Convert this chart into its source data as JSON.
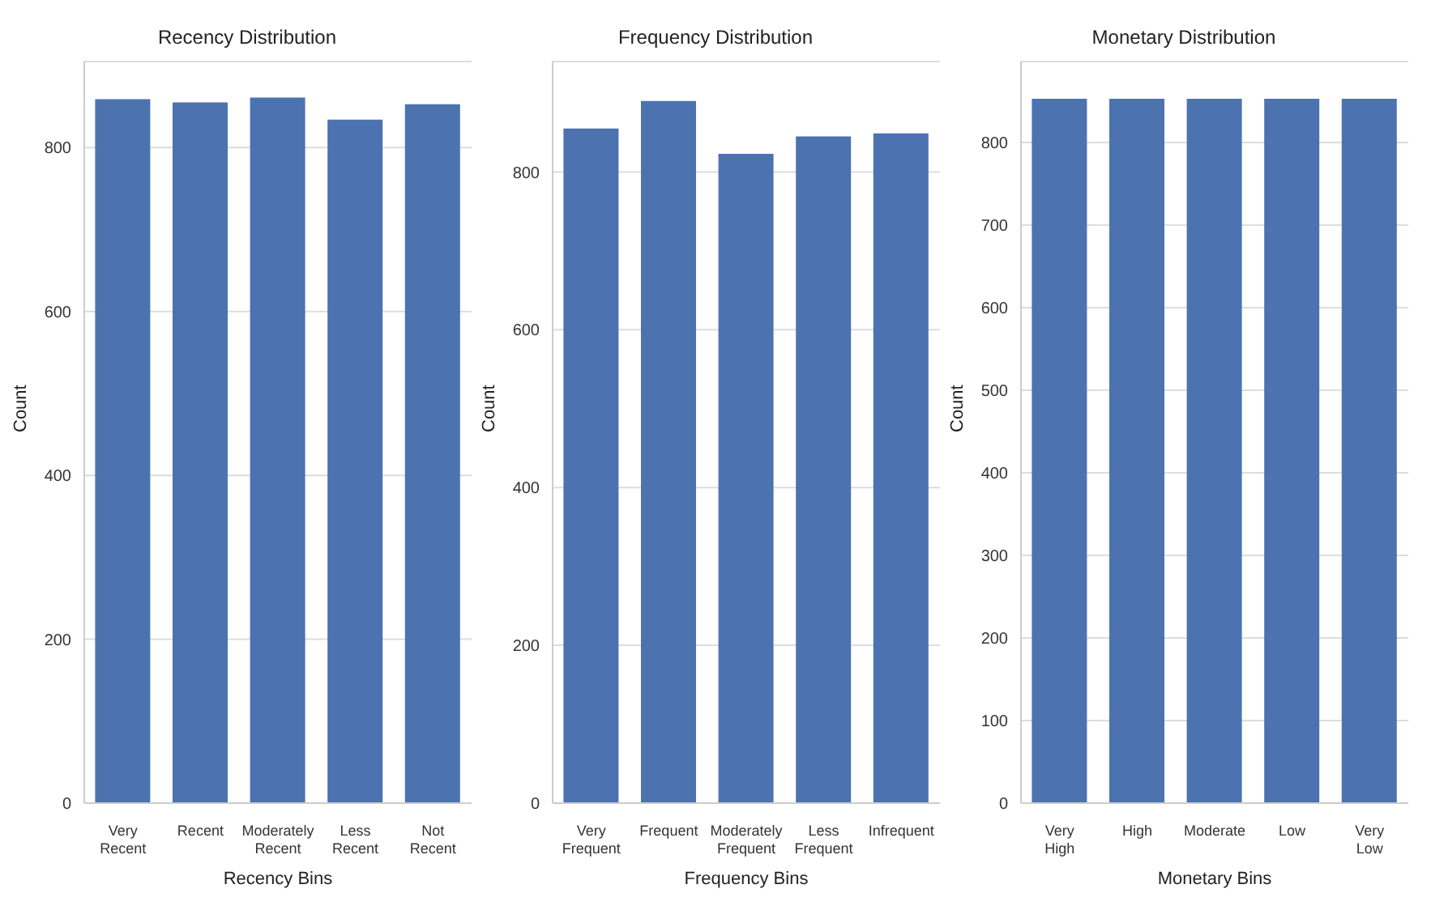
{
  "chart_data": [
    {
      "type": "bar",
      "title": "Recency Distribution",
      "xlabel": "Recency Bins",
      "ylabel": "Count",
      "categories": [
        "Very Recent",
        "Recent",
        "Moderately Recent",
        "Less Recent",
        "Not Recent"
      ],
      "values": [
        859,
        855,
        861,
        834,
        853
      ],
      "color": "#4c72b0",
      "ylim": [
        0,
        905
      ],
      "yticks": [
        0,
        200,
        400,
        600,
        800
      ],
      "grid": "y"
    },
    {
      "type": "bar",
      "title": "Frequency Distribution",
      "xlabel": "Frequency Bins",
      "ylabel": "Count",
      "categories": [
        "Very Frequent",
        "Frequent",
        "Moderately Frequent",
        "Less Frequent",
        "Infrequent"
      ],
      "values": [
        855,
        890,
        823,
        845,
        849
      ],
      "color": "#4c72b0",
      "ylim": [
        0,
        940
      ],
      "yticks": [
        0,
        200,
        400,
        600,
        800
      ],
      "grid": "y"
    },
    {
      "type": "bar",
      "title": "Monetary Distribution",
      "xlabel": "Monetary Bins",
      "ylabel": "Count",
      "categories": [
        "Very High",
        "High",
        "Moderate",
        "Low",
        "Very Low"
      ],
      "values": [
        853,
        853,
        853,
        853,
        853
      ],
      "color": "#4c72b0",
      "ylim": [
        0,
        898
      ],
      "yticks": [
        0,
        100,
        200,
        300,
        400,
        500,
        600,
        700,
        800
      ],
      "grid": "y"
    }
  ]
}
